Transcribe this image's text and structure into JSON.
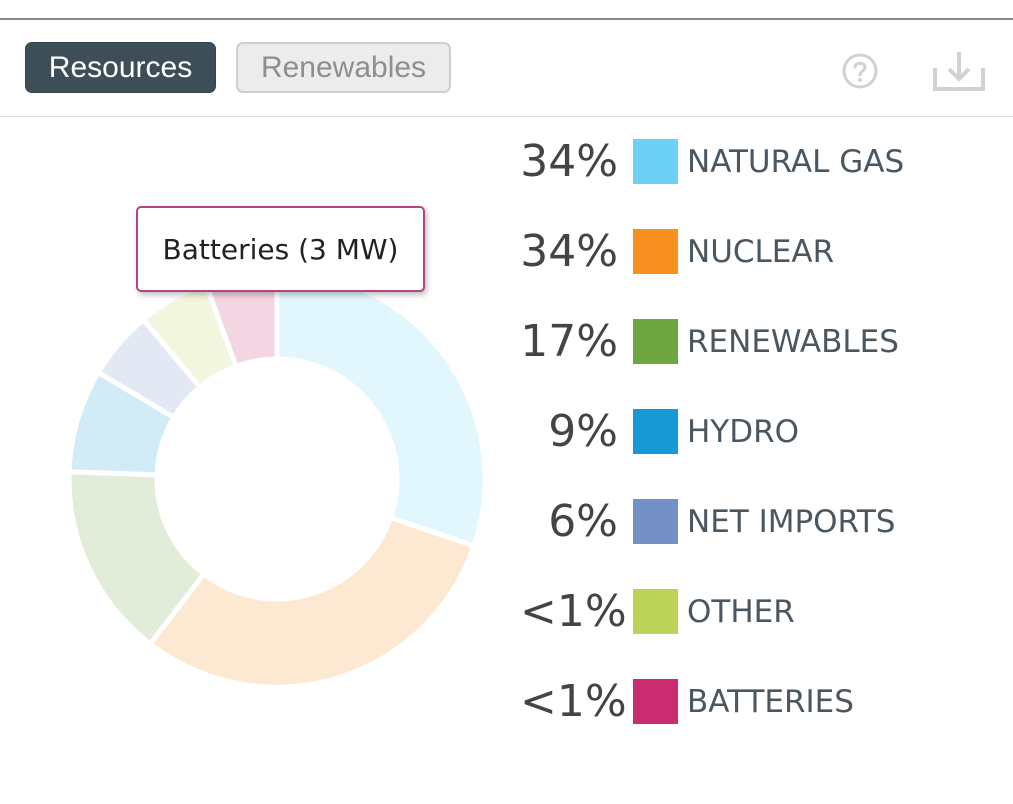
{
  "tabs": [
    {
      "label": "Resources",
      "active": true
    },
    {
      "label": "Renewables",
      "active": false
    }
  ],
  "toolbar": {
    "help_icon": "help-circle-icon",
    "download_icon": "download-tray-icon"
  },
  "tooltip": {
    "text": "Batteries (3 MW)",
    "border_color": "#b2457f"
  },
  "chart_data": {
    "type": "pie",
    "style": "donut",
    "faded": true,
    "highlighted": "BATTERIES",
    "slices": [
      {
        "label": "NATURAL GAS",
        "percent_label": "34%",
        "value": 34,
        "color": "#6dd0f5"
      },
      {
        "label": "NUCLEAR",
        "percent_label": "34%",
        "value": 34,
        "color": "#f7901e"
      },
      {
        "label": "RENEWABLES",
        "percent_label": "17%",
        "value": 17,
        "color": "#6fa63f"
      },
      {
        "label": "HYDRO",
        "percent_label": "9%",
        "value": 9,
        "color": "#1899d5"
      },
      {
        "label": "NET IMPORTS",
        "percent_label": "6%",
        "value": 6,
        "color": "#7490c6"
      },
      {
        "label": "OTHER",
        "percent_label": "<1%",
        "value": 0.3,
        "color": "#bcd35a"
      },
      {
        "label": "BATTERIES",
        "percent_label": "<1%",
        "value": 0.1,
        "color": "#c92d6f"
      }
    ]
  }
}
